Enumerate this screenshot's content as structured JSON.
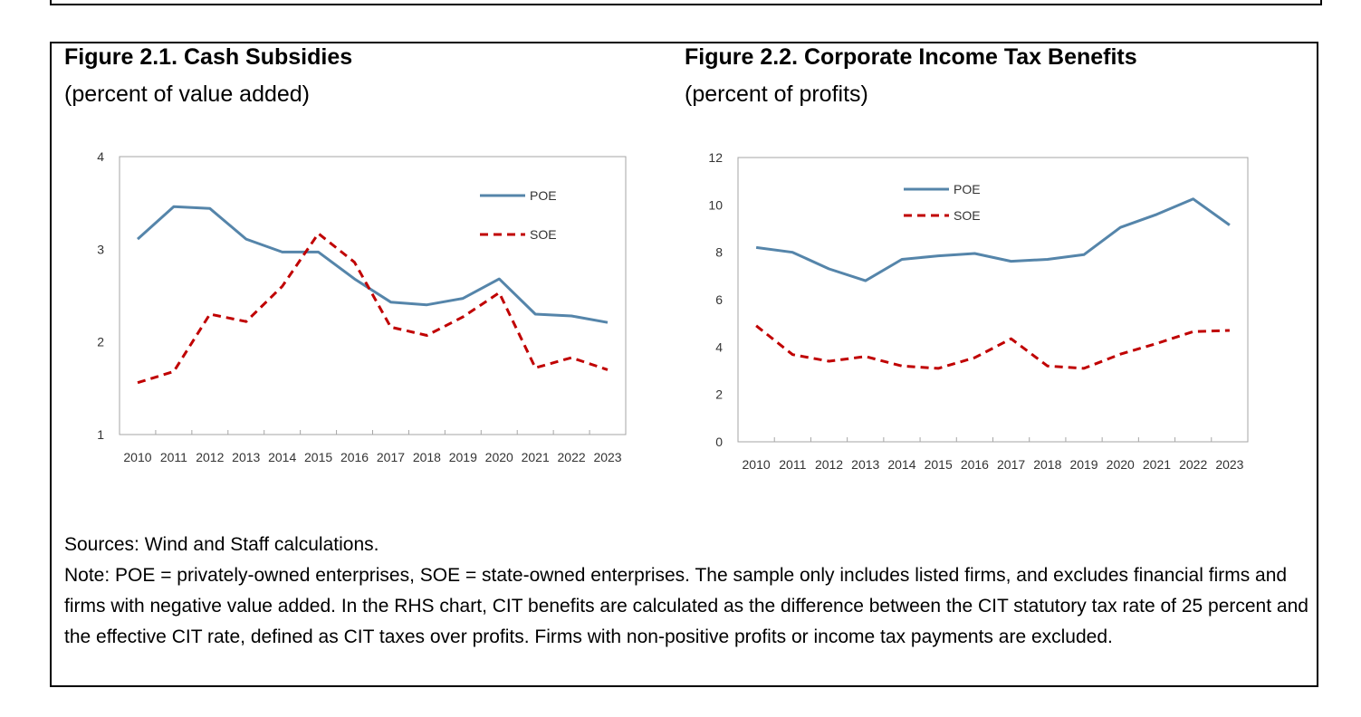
{
  "sources": "Sources: Wind and Staff calculations.",
  "note": "Note: POE = privately-owned enterprises, SOE = state-owned enterprises. The sample only includes listed firms, and excludes financial firms and firms with negative value added. In the RHS chart, CIT benefits are calculated as the difference between the CIT statutory tax rate of 25 percent and the effective CIT rate, defined as CIT taxes over profits. Firms with non-positive profits or income tax payments are excluded.",
  "colors": {
    "poe": "#5585aa",
    "soe": "#c00000",
    "frame": "#a6a6a6",
    "text": "#333333"
  },
  "chart_data": [
    {
      "type": "line",
      "title": "Figure 2.1. Cash Subsidies",
      "subtitle": "(percent of value added)",
      "xlabel": "",
      "ylabel": "",
      "categories": [
        "2010",
        "2011",
        "2012",
        "2013",
        "2014",
        "2015",
        "2016",
        "2017",
        "2018",
        "2019",
        "2020",
        "2021",
        "2022",
        "2023"
      ],
      "ylim": [
        1,
        4
      ],
      "yticks": [
        1,
        2,
        3,
        4
      ],
      "grid": false,
      "legend_position": "top-right",
      "series": [
        {
          "name": "POE",
          "style": "solid",
          "values": [
            3.11,
            3.46,
            3.44,
            3.11,
            2.97,
            2.97,
            2.68,
            2.43,
            2.4,
            2.47,
            2.68,
            2.3,
            2.28,
            2.21
          ]
        },
        {
          "name": "SOE",
          "style": "dashed",
          "values": [
            1.56,
            1.68,
            2.3,
            2.22,
            2.6,
            3.17,
            2.86,
            2.16,
            2.07,
            2.27,
            2.53,
            1.72,
            1.83,
            1.7
          ]
        }
      ]
    },
    {
      "type": "line",
      "title": "Figure 2.2. Corporate Income Tax Benefits",
      "subtitle": "(percent of profits)",
      "xlabel": "",
      "ylabel": "",
      "categories": [
        "2010",
        "2011",
        "2012",
        "2013",
        "2014",
        "2015",
        "2016",
        "2017",
        "2018",
        "2019",
        "2020",
        "2021",
        "2022",
        "2023"
      ],
      "ylim": [
        0,
        12
      ],
      "yticks": [
        0,
        2,
        4,
        6,
        8,
        10,
        12
      ],
      "grid": false,
      "legend_position": "top-left",
      "series": [
        {
          "name": "POE",
          "style": "solid",
          "values": [
            8.2,
            8.0,
            7.3,
            6.8,
            7.7,
            7.85,
            7.95,
            7.62,
            7.7,
            7.9,
            9.05,
            9.6,
            10.25,
            9.15
          ]
        },
        {
          "name": "SOE",
          "style": "dashed",
          "values": [
            4.9,
            3.68,
            3.4,
            3.6,
            3.2,
            3.1,
            3.55,
            4.35,
            3.2,
            3.1,
            3.7,
            4.15,
            4.65,
            4.7
          ]
        }
      ]
    }
  ]
}
